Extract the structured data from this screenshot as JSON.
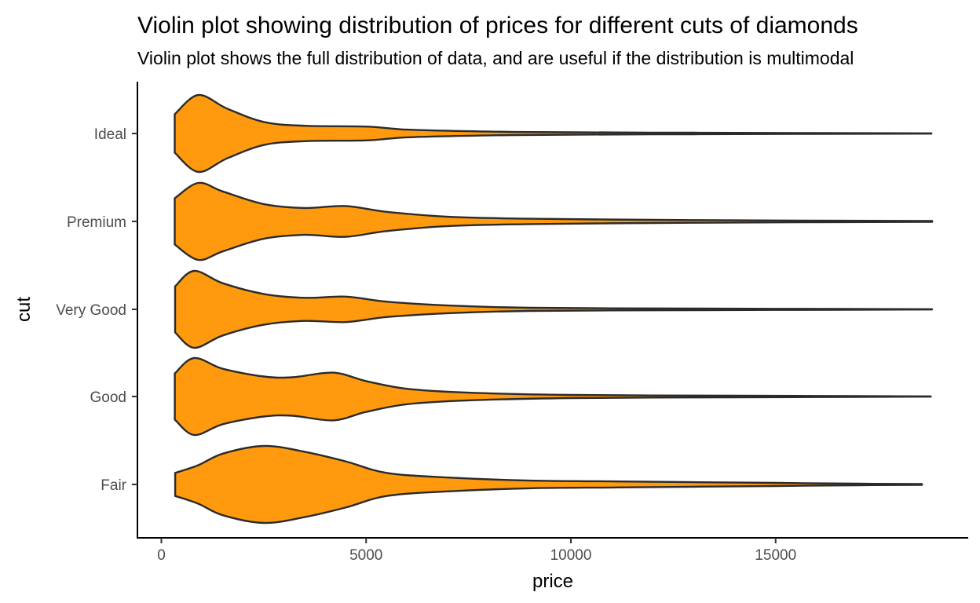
{
  "chart_data": {
    "type": "violin",
    "orientation": "horizontal",
    "title": "Violin plot showing distribution of prices for different cuts of diamonds",
    "subtitle": "Violin plot shows the full distribution of data, and are useful if the distribution is multimodal",
    "xlabel": "price",
    "ylabel": "cut",
    "xlim": [
      -600,
      19400
    ],
    "x_ticks": [
      0,
      5000,
      10000,
      15000
    ],
    "x_tick_labels": [
      "0",
      "5000",
      "10000",
      "15000"
    ],
    "categories": [
      "Fair",
      "Good",
      "Very Good",
      "Premium",
      "Ideal"
    ],
    "fill_color": "#FF9A0E",
    "outline_color": "#2b2b2b",
    "grid": false,
    "legend": "none",
    "series": [
      {
        "category": "Fair",
        "min": 337,
        "max": 18574,
        "density": [
          [
            337,
            0.3
          ],
          [
            900,
            0.5
          ],
          [
            1500,
            0.8
          ],
          [
            2500,
            1.0
          ],
          [
            3500,
            0.85
          ],
          [
            4500,
            0.6
          ],
          [
            5500,
            0.3
          ],
          [
            7000,
            0.18
          ],
          [
            9000,
            0.1
          ],
          [
            11000,
            0.08
          ],
          [
            13000,
            0.06
          ],
          [
            15000,
            0.04
          ],
          [
            17000,
            0.02
          ],
          [
            18574,
            0.01
          ]
        ]
      },
      {
        "category": "Good",
        "min": 327,
        "max": 18788,
        "density": [
          [
            327,
            0.6
          ],
          [
            800,
            1.0
          ],
          [
            1500,
            0.72
          ],
          [
            2500,
            0.52
          ],
          [
            3200,
            0.5
          ],
          [
            4200,
            0.62
          ],
          [
            5000,
            0.4
          ],
          [
            6000,
            0.2
          ],
          [
            7500,
            0.1
          ],
          [
            10000,
            0.04
          ],
          [
            13000,
            0.025
          ],
          [
            16000,
            0.015
          ],
          [
            18788,
            0.005
          ]
        ]
      },
      {
        "category": "Very Good",
        "min": 336,
        "max": 18818,
        "density": [
          [
            336,
            0.6
          ],
          [
            800,
            1.0
          ],
          [
            1500,
            0.68
          ],
          [
            2500,
            0.4
          ],
          [
            3500,
            0.3
          ],
          [
            4500,
            0.33
          ],
          [
            5500,
            0.2
          ],
          [
            7000,
            0.1
          ],
          [
            9000,
            0.04
          ],
          [
            12000,
            0.025
          ],
          [
            15000,
            0.015
          ],
          [
            18818,
            0.005
          ]
        ]
      },
      {
        "category": "Premium",
        "min": 326,
        "max": 18823,
        "density": [
          [
            326,
            0.6
          ],
          [
            900,
            1.0
          ],
          [
            1500,
            0.78
          ],
          [
            2500,
            0.45
          ],
          [
            3500,
            0.35
          ],
          [
            4500,
            0.4
          ],
          [
            5500,
            0.25
          ],
          [
            7000,
            0.12
          ],
          [
            9000,
            0.07
          ],
          [
            12000,
            0.04
          ],
          [
            15000,
            0.025
          ],
          [
            18823,
            0.01
          ]
        ]
      },
      {
        "category": "Ideal",
        "min": 326,
        "max": 18806,
        "density": [
          [
            326,
            0.5
          ],
          [
            900,
            1.0
          ],
          [
            1600,
            0.65
          ],
          [
            2500,
            0.3
          ],
          [
            3500,
            0.2
          ],
          [
            5000,
            0.18
          ],
          [
            6000,
            0.1
          ],
          [
            8000,
            0.05
          ],
          [
            10000,
            0.03
          ],
          [
            13000,
            0.02
          ],
          [
            16000,
            0.01
          ],
          [
            18806,
            0.005
          ]
        ]
      }
    ]
  }
}
